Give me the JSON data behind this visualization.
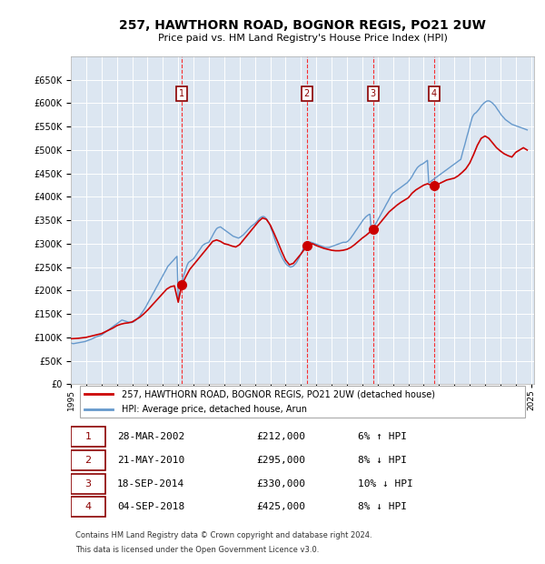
{
  "title": "257, HAWTHORN ROAD, BOGNOR REGIS, PO21 2UW",
  "subtitle": "Price paid vs. HM Land Registry's House Price Index (HPI)",
  "ylabel": "",
  "xlabel": "",
  "background_color": "#dce6f1",
  "plot_bg_color": "#dce6f1",
  "line1_color": "#cc0000",
  "line2_color": "#6699cc",
  "line1_label": "257, HAWTHORN ROAD, BOGNOR REGIS, PO21 2UW (detached house)",
  "line2_label": "HPI: Average price, detached house, Arun",
  "ylim": [
    0,
    700000
  ],
  "yticks": [
    0,
    50000,
    100000,
    150000,
    200000,
    250000,
    300000,
    350000,
    400000,
    450000,
    500000,
    550000,
    600000,
    650000
  ],
  "transactions": [
    {
      "num": 1,
      "date": "28-MAR-2002",
      "price": 212000,
      "pct": "6%",
      "dir": "↑",
      "year": 2002.23
    },
    {
      "num": 2,
      "date": "21-MAY-2010",
      "price": 295000,
      "pct": "8%",
      "dir": "↓",
      "year": 2010.38
    },
    {
      "num": 3,
      "date": "18-SEP-2014",
      "price": 330000,
      "pct": "10%",
      "dir": "↓",
      "year": 2014.71
    },
    {
      "num": 4,
      "date": "04-SEP-2018",
      "price": 425000,
      "pct": "8%",
      "dir": "↓",
      "year": 2018.67
    }
  ],
  "footer_line1": "Contains HM Land Registry data © Crown copyright and database right 2024.",
  "footer_line2": "This data is licensed under the Open Government Licence v3.0.",
  "hpi_data": {
    "years": [
      1995.0,
      1995.08,
      1995.17,
      1995.25,
      1995.33,
      1995.42,
      1995.5,
      1995.58,
      1995.67,
      1995.75,
      1995.83,
      1995.92,
      1996.0,
      1996.08,
      1996.17,
      1996.25,
      1996.33,
      1996.42,
      1996.5,
      1996.58,
      1996.67,
      1996.75,
      1996.83,
      1996.92,
      1997.0,
      1997.08,
      1997.17,
      1997.25,
      1997.33,
      1997.42,
      1997.5,
      1997.58,
      1997.67,
      1997.75,
      1997.83,
      1997.92,
      1998.0,
      1998.08,
      1998.17,
      1998.25,
      1998.33,
      1998.42,
      1998.5,
      1998.58,
      1998.67,
      1998.75,
      1998.83,
      1998.92,
      1999.0,
      1999.08,
      1999.17,
      1999.25,
      1999.33,
      1999.42,
      1999.5,
      1999.58,
      1999.67,
      1999.75,
      1999.83,
      1999.92,
      2000.0,
      2000.08,
      2000.17,
      2000.25,
      2000.33,
      2000.42,
      2000.5,
      2000.58,
      2000.67,
      2000.75,
      2000.83,
      2000.92,
      2001.0,
      2001.08,
      2001.17,
      2001.25,
      2001.33,
      2001.42,
      2001.5,
      2001.58,
      2001.67,
      2001.75,
      2001.83,
      2001.92,
      2002.0,
      2002.08,
      2002.17,
      2002.25,
      2002.33,
      2002.42,
      2002.5,
      2002.58,
      2002.67,
      2002.75,
      2002.83,
      2002.92,
      2003.0,
      2003.08,
      2003.17,
      2003.25,
      2003.33,
      2003.42,
      2003.5,
      2003.58,
      2003.67,
      2003.75,
      2003.83,
      2003.92,
      2004.0,
      2004.08,
      2004.17,
      2004.25,
      2004.33,
      2004.42,
      2004.5,
      2004.58,
      2004.67,
      2004.75,
      2004.83,
      2004.92,
      2005.0,
      2005.08,
      2005.17,
      2005.25,
      2005.33,
      2005.42,
      2005.5,
      2005.58,
      2005.67,
      2005.75,
      2005.83,
      2005.92,
      2006.0,
      2006.08,
      2006.17,
      2006.25,
      2006.33,
      2006.42,
      2006.5,
      2006.58,
      2006.67,
      2006.75,
      2006.83,
      2006.92,
      2007.0,
      2007.08,
      2007.17,
      2007.25,
      2007.33,
      2007.42,
      2007.5,
      2007.58,
      2007.67,
      2007.75,
      2007.83,
      2007.92,
      2008.0,
      2008.08,
      2008.17,
      2008.25,
      2008.33,
      2008.42,
      2008.5,
      2008.58,
      2008.67,
      2008.75,
      2008.83,
      2008.92,
      2009.0,
      2009.08,
      2009.17,
      2009.25,
      2009.33,
      2009.42,
      2009.5,
      2009.58,
      2009.67,
      2009.75,
      2009.83,
      2009.92,
      2010.0,
      2010.08,
      2010.17,
      2010.25,
      2010.33,
      2010.42,
      2010.5,
      2010.58,
      2010.67,
      2010.75,
      2010.83,
      2010.92,
      2011.0,
      2011.08,
      2011.17,
      2011.25,
      2011.33,
      2011.42,
      2011.5,
      2011.58,
      2011.67,
      2011.75,
      2011.83,
      2011.92,
      2012.0,
      2012.08,
      2012.17,
      2012.25,
      2012.33,
      2012.42,
      2012.5,
      2012.58,
      2012.67,
      2012.75,
      2012.83,
      2012.92,
      2013.0,
      2013.08,
      2013.17,
      2013.25,
      2013.33,
      2013.42,
      2013.5,
      2013.58,
      2013.67,
      2013.75,
      2013.83,
      2013.92,
      2014.0,
      2014.08,
      2014.17,
      2014.25,
      2014.33,
      2014.42,
      2014.5,
      2014.58,
      2014.67,
      2014.75,
      2014.83,
      2014.92,
      2015.0,
      2015.08,
      2015.17,
      2015.25,
      2015.33,
      2015.42,
      2015.5,
      2015.58,
      2015.67,
      2015.75,
      2015.83,
      2015.92,
      2016.0,
      2016.08,
      2016.17,
      2016.25,
      2016.33,
      2016.42,
      2016.5,
      2016.58,
      2016.67,
      2016.75,
      2016.83,
      2016.92,
      2017.0,
      2017.08,
      2017.17,
      2017.25,
      2017.33,
      2017.42,
      2017.5,
      2017.58,
      2017.67,
      2017.75,
      2017.83,
      2017.92,
      2018.0,
      2018.08,
      2018.17,
      2018.25,
      2018.33,
      2018.42,
      2018.5,
      2018.58,
      2018.67,
      2018.75,
      2018.83,
      2018.92,
      2019.0,
      2019.08,
      2019.17,
      2019.25,
      2019.33,
      2019.42,
      2019.5,
      2019.58,
      2019.67,
      2019.75,
      2019.83,
      2019.92,
      2020.0,
      2020.08,
      2020.17,
      2020.25,
      2020.33,
      2020.42,
      2020.5,
      2020.58,
      2020.67,
      2020.75,
      2020.83,
      2020.92,
      2021.0,
      2021.08,
      2021.17,
      2021.25,
      2021.33,
      2021.42,
      2021.5,
      2021.58,
      2021.67,
      2021.75,
      2021.83,
      2021.92,
      2022.0,
      2022.08,
      2022.17,
      2022.25,
      2022.33,
      2022.42,
      2022.5,
      2022.58,
      2022.67,
      2022.75,
      2022.83,
      2022.92,
      2023.0,
      2023.08,
      2023.17,
      2023.25,
      2023.33,
      2023.42,
      2023.5,
      2023.58,
      2023.67,
      2023.75,
      2023.83,
      2023.92,
      2024.0,
      2024.08,
      2024.17,
      2024.25,
      2024.33,
      2024.42,
      2024.5,
      2024.58,
      2024.67,
      2024.75
    ],
    "values": [
      88000,
      87000,
      86500,
      87000,
      87500,
      88000,
      88500,
      89000,
      89500,
      90000,
      90500,
      91000,
      92000,
      93000,
      94000,
      95000,
      96000,
      97500,
      99000,
      100000,
      101000,
      102000,
      103000,
      104000,
      105000,
      107000,
      109000,
      111000,
      113000,
      115000,
      117000,
      119000,
      121000,
      123000,
      125000,
      127000,
      129000,
      131000,
      133000,
      135000,
      137000,
      136000,
      135000,
      134000,
      133000,
      132500,
      132000,
      131500,
      132000,
      133000,
      135000,
      137000,
      140000,
      143000,
      146000,
      150000,
      154000,
      158000,
      162000,
      167000,
      172000,
      177000,
      182000,
      187000,
      192000,
      197000,
      202000,
      207000,
      212000,
      217000,
      222000,
      227000,
      232000,
      237000,
      242000,
      247000,
      252000,
      255000,
      258000,
      261000,
      264000,
      267000,
      270000,
      273000,
      180000,
      192000,
      205000,
      218000,
      230000,
      238000,
      246000,
      254000,
      260000,
      262000,
      264000,
      266000,
      268000,
      272000,
      276000,
      280000,
      284000,
      288000,
      292000,
      296000,
      298000,
      300000,
      301000,
      302000,
      303000,
      308000,
      313000,
      318000,
      323000,
      328000,
      332000,
      334000,
      335000,
      336000,
      334000,
      332000,
      330000,
      328000,
      326000,
      324000,
      322000,
      320000,
      318000,
      316000,
      315000,
      314000,
      313000,
      312000,
      313000,
      315000,
      317000,
      319000,
      322000,
      325000,
      328000,
      331000,
      334000,
      337000,
      339000,
      341000,
      343000,
      346000,
      349000,
      352000,
      355000,
      357000,
      358000,
      358000,
      356000,
      353000,
      349000,
      344000,
      338000,
      330000,
      322000,
      314000,
      306000,
      298000,
      291000,
      284000,
      278000,
      272000,
      267000,
      262000,
      258000,
      255000,
      253000,
      251000,
      250000,
      251000,
      252000,
      255000,
      258000,
      262000,
      267000,
      272000,
      278000,
      284000,
      290000,
      295000,
      298000,
      300000,
      302000,
      303000,
      303000,
      302000,
      301000,
      300000,
      299000,
      298000,
      297000,
      296000,
      295000,
      294000,
      293000,
      292000,
      292000,
      292000,
      292000,
      293000,
      294000,
      295000,
      296000,
      297000,
      298000,
      299000,
      300000,
      301000,
      302000,
      303000,
      303000,
      303000,
      304000,
      306000,
      309000,
      312000,
      316000,
      320000,
      324000,
      328000,
      332000,
      336000,
      340000,
      344000,
      348000,
      352000,
      355000,
      358000,
      360000,
      362000,
      363000,
      330000,
      333000,
      337000,
      341000,
      345000,
      350000,
      355000,
      360000,
      365000,
      370000,
      375000,
      380000,
      385000,
      390000,
      395000,
      400000,
      405000,
      408000,
      410000,
      412000,
      414000,
      416000,
      418000,
      420000,
      422000,
      424000,
      426000,
      428000,
      430000,
      433000,
      436000,
      440000,
      444000,
      449000,
      454000,
      458000,
      462000,
      465000,
      467000,
      469000,
      470000,
      472000,
      474000,
      476000,
      478000,
      430000,
      432000,
      434000,
      436000,
      438000,
      440000,
      442000,
      444000,
      446000,
      448000,
      450000,
      452000,
      454000,
      456000,
      458000,
      460000,
      462000,
      464000,
      466000,
      468000,
      470000,
      472000,
      474000,
      476000,
      478000,
      480000,
      490000,
      500000,
      510000,
      520000,
      530000,
      540000,
      550000,
      560000,
      570000,
      575000,
      578000,
      580000,
      583000,
      586000,
      590000,
      594000,
      597000,
      600000,
      602000,
      604000,
      605000,
      605000,
      604000,
      602000,
      600000,
      597000,
      594000,
      590000,
      586000,
      582000,
      578000,
      574000,
      571000,
      568000,
      565000,
      563000,
      561000,
      559000,
      557000,
      555000,
      554000,
      553000,
      552000,
      551000,
      550000,
      549000,
      548000,
      547000,
      546000,
      545000,
      544000,
      543000
    ]
  },
  "price_data": {
    "years": [
      1995.0,
      1995.25,
      1995.5,
      1995.75,
      1996.0,
      1996.25,
      1996.5,
      1996.75,
      1997.0,
      1997.25,
      1997.5,
      1997.75,
      1998.0,
      1998.25,
      1998.5,
      1998.75,
      1999.0,
      1999.25,
      1999.5,
      1999.75,
      2000.0,
      2000.25,
      2000.5,
      2000.75,
      2001.0,
      2001.25,
      2001.5,
      2001.75,
      2002.0,
      2002.23,
      2002.5,
      2002.75,
      2003.0,
      2003.25,
      2003.5,
      2003.75,
      2004.0,
      2004.25,
      2004.5,
      2004.75,
      2005.0,
      2005.25,
      2005.5,
      2005.75,
      2006.0,
      2006.25,
      2006.5,
      2006.75,
      2007.0,
      2007.25,
      2007.5,
      2007.75,
      2008.0,
      2008.25,
      2008.5,
      2008.75,
      2009.0,
      2009.25,
      2009.5,
      2009.75,
      2010.0,
      2010.38,
      2010.5,
      2010.75,
      2011.0,
      2011.25,
      2011.5,
      2011.75,
      2012.0,
      2012.25,
      2012.5,
      2012.75,
      2013.0,
      2013.25,
      2013.5,
      2013.75,
      2014.0,
      2014.25,
      2014.5,
      2014.71,
      2015.0,
      2015.25,
      2015.5,
      2015.75,
      2016.0,
      2016.25,
      2016.5,
      2016.75,
      2017.0,
      2017.25,
      2017.5,
      2017.75,
      2018.0,
      2018.25,
      2018.5,
      2018.67,
      2019.0,
      2019.25,
      2019.5,
      2019.75,
      2020.0,
      2020.25,
      2020.5,
      2020.75,
      2021.0,
      2021.25,
      2021.5,
      2021.75,
      2022.0,
      2022.25,
      2022.5,
      2022.75,
      2023.0,
      2023.25,
      2023.5,
      2023.75,
      2024.0,
      2024.25,
      2024.5,
      2024.75
    ],
    "values": [
      97000,
      97500,
      98000,
      99000,
      100000,
      102000,
      104000,
      106000,
      108000,
      112000,
      116000,
      120000,
      125000,
      128000,
      130000,
      131000,
      133000,
      138000,
      143000,
      150000,
      158000,
      167000,
      176000,
      185000,
      194000,
      203000,
      208000,
      210000,
      175000,
      212000,
      230000,
      245000,
      255000,
      265000,
      275000,
      285000,
      295000,
      305000,
      308000,
      305000,
      300000,
      298000,
      295000,
      293000,
      298000,
      308000,
      318000,
      328000,
      338000,
      348000,
      355000,
      352000,
      340000,
      322000,
      303000,
      283000,
      265000,
      255000,
      258000,
      268000,
      278000,
      295000,
      298000,
      300000,
      296000,
      293000,
      290000,
      288000,
      286000,
      285000,
      285000,
      286000,
      288000,
      292000,
      298000,
      305000,
      312000,
      318000,
      325000,
      330000,
      338000,
      348000,
      358000,
      368000,
      375000,
      382000,
      388000,
      393000,
      398000,
      408000,
      415000,
      420000,
      425000,
      428000,
      425000,
      425000,
      428000,
      432000,
      436000,
      438000,
      440000,
      445000,
      452000,
      460000,
      472000,
      490000,
      510000,
      525000,
      530000,
      525000,
      515000,
      505000,
      498000,
      492000,
      488000,
      485000,
      495000,
      500000,
      505000,
      500000
    ]
  }
}
